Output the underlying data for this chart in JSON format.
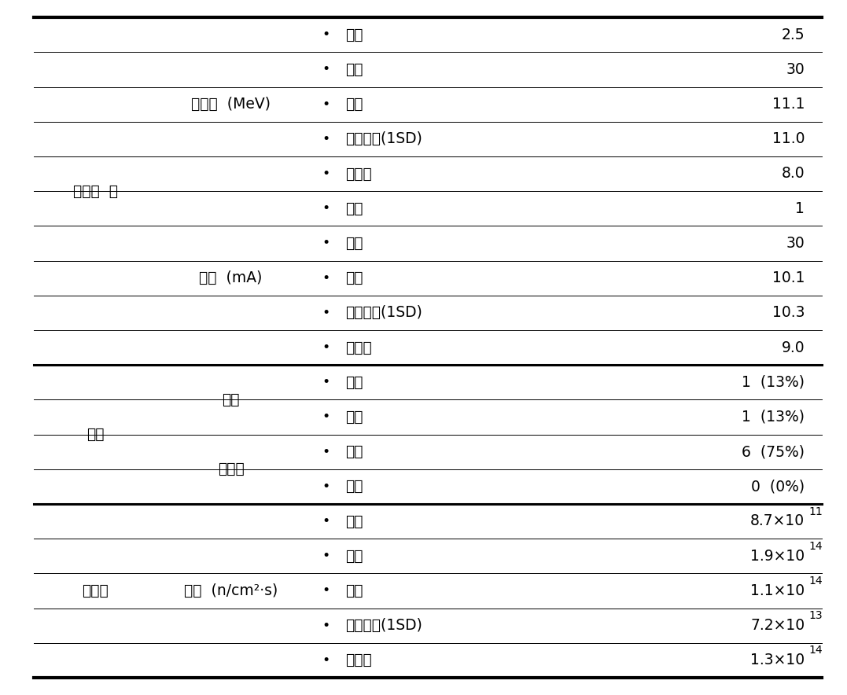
{
  "background_color": "#ffffff",
  "col1_spans": [
    {
      "start": 0,
      "end": 9,
      "text": "양성자  빔"
    },
    {
      "start": 10,
      "end": 13,
      "text": "표적"
    },
    {
      "start": 14,
      "end": 18,
      "text": "중성자"
    }
  ],
  "col2_spans": [
    {
      "start": 0,
      "end": 4,
      "text": "에너지  (MeV)"
    },
    {
      "start": 5,
      "end": 9,
      "text": "전류  (mA)"
    },
    {
      "start": 10,
      "end": 11,
      "text": "리튬"
    },
    {
      "start": 12,
      "end": 13,
      "text": "베릴륨"
    },
    {
      "start": 14,
      "end": 18,
      "text": "수율  (n/cm²·s)"
    }
  ],
  "rows": [
    {
      "col3": "최소",
      "col4": "2.5",
      "col4_base": "2.5",
      "col4_exp": ""
    },
    {
      "col3": "최대",
      "col4": "30",
      "col4_base": "30",
      "col4_exp": ""
    },
    {
      "col3": "평균",
      "col4": "11.1",
      "col4_base": "11.1",
      "col4_exp": ""
    },
    {
      "col3": "표준편차(1SD)",
      "col4": "11.0",
      "col4_base": "11.0",
      "col4_exp": ""
    },
    {
      "col3": "중간값",
      "col4": "8.0",
      "col4_base": "8.0",
      "col4_exp": ""
    },
    {
      "col3": "최소",
      "col4": "1",
      "col4_base": "1",
      "col4_exp": ""
    },
    {
      "col3": "최대",
      "col4": "30",
      "col4_base": "30",
      "col4_exp": ""
    },
    {
      "col3": "평균",
      "col4": "10.1",
      "col4_base": "10.1",
      "col4_exp": ""
    },
    {
      "col3": "표준편차(1SD)",
      "col4": "10.3",
      "col4_base": "10.3",
      "col4_exp": ""
    },
    {
      "col3": "중간값",
      "col4": "9.0",
      "col4_base": "9.0",
      "col4_exp": ""
    },
    {
      "col3": "고체",
      "col4": "1  (13%)",
      "col4_base": "1  (13%)",
      "col4_exp": ""
    },
    {
      "col3": "액체",
      "col4": "1  (13%)",
      "col4_base": "1  (13%)",
      "col4_exp": ""
    },
    {
      "col3": "고체",
      "col4": "6  (75%)",
      "col4_base": "6  (75%)",
      "col4_exp": ""
    },
    {
      "col3": "액체",
      "col4": "0  (0%)",
      "col4_base": "0  (0%)",
      "col4_exp": ""
    },
    {
      "col3": "최소",
      "col4": "8.7×10",
      "col4_base": "8.7×10",
      "col4_exp": "11"
    },
    {
      "col3": "최대",
      "col4": "1.9×10",
      "col4_base": "1.9×10",
      "col4_exp": "14"
    },
    {
      "col3": "평균",
      "col4": "1.1×10",
      "col4_base": "1.1×10",
      "col4_exp": "14"
    },
    {
      "col3": "표준편차(1SD)",
      "col4": "7.2×10",
      "col4_base": "7.2×10",
      "col4_exp": "13"
    },
    {
      "col3": "중간값",
      "col4": "1.3×10",
      "col4_base": "1.3×10",
      "col4_exp": "14"
    }
  ],
  "section_breaks_after": [
    9,
    13
  ],
  "col2_breaks_after": [
    4,
    11
  ],
  "n_rows": 19,
  "font_size": 13.5,
  "bullet": "•"
}
